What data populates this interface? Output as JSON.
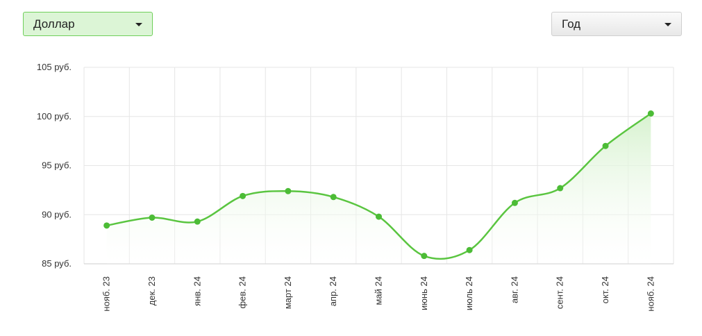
{
  "controls": {
    "currency_select": "Доллар",
    "period_select": "Год"
  },
  "colors": {
    "line": "#5ac540",
    "point": "#4cbc36",
    "grid": "#e6e6e6",
    "area_top": "#d7f2cf"
  },
  "chart_data": {
    "type": "area",
    "categories": [
      "нояб. 23",
      "дек. 23",
      "янв. 24",
      "фев. 24",
      "март 24",
      "апр. 24",
      "май 24",
      "июнь 24",
      "июль 24",
      "авг. 24",
      "сент. 24",
      "окт. 24",
      "нояб. 24"
    ],
    "values": [
      88.9,
      89.7,
      89.3,
      91.9,
      92.4,
      91.8,
      89.8,
      85.8,
      86.4,
      91.2,
      92.7,
      97.0,
      100.3
    ],
    "ylim": [
      85,
      105
    ],
    "yticks": [
      105,
      100,
      95,
      90,
      85
    ],
    "ytick_labels": [
      "105 руб.",
      "100 руб.",
      "95 руб.",
      "90 руб.",
      "85 руб."
    ],
    "grid": true,
    "title": "",
    "xlabel": "",
    "ylabel": ""
  }
}
